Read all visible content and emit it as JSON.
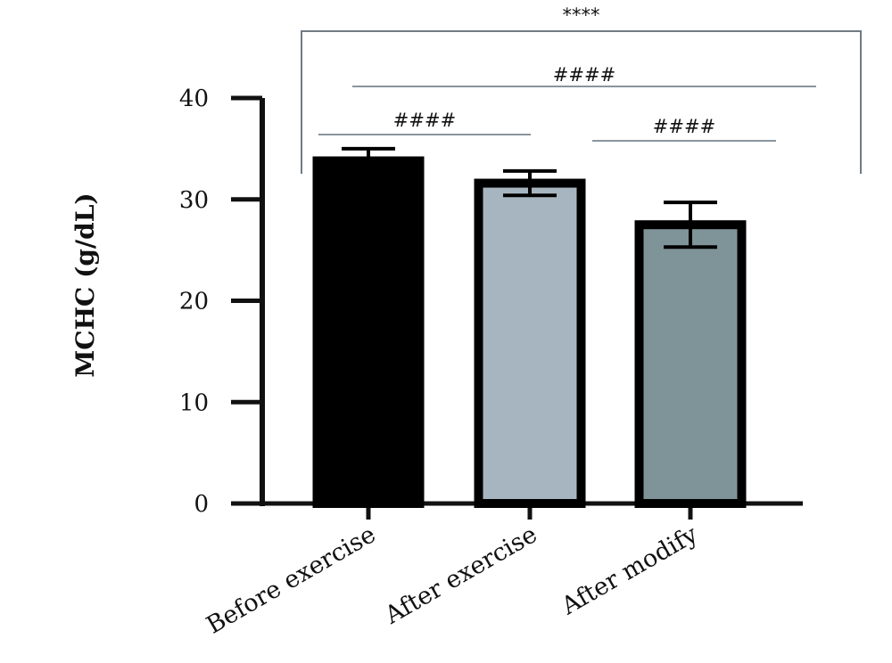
{
  "chart_data": {
    "type": "bar",
    "ylabel": "MCHC (g/dL)",
    "ylim": [
      0,
      40
    ],
    "yticks": [
      0,
      10,
      20,
      30,
      40
    ],
    "categories": [
      "Before exercise",
      "After exercise",
      "After modify"
    ],
    "values": [
      33.8,
      31.6,
      27.5
    ],
    "errors": [
      1.2,
      1.2,
      2.2
    ],
    "bar_colors": [
      "#000000",
      "#a7b5c0",
      "#7f9498"
    ],
    "significance": [
      {
        "label": "****",
        "from": 0,
        "to": 2,
        "style": "bracket"
      },
      {
        "label": "####",
        "from": 0,
        "to": 2,
        "style": "line"
      },
      {
        "label": "####",
        "from": 0,
        "to": 1,
        "style": "line"
      },
      {
        "label": "####",
        "from": 1,
        "to": 2,
        "style": "line"
      }
    ],
    "grid": false,
    "legend": "none"
  }
}
